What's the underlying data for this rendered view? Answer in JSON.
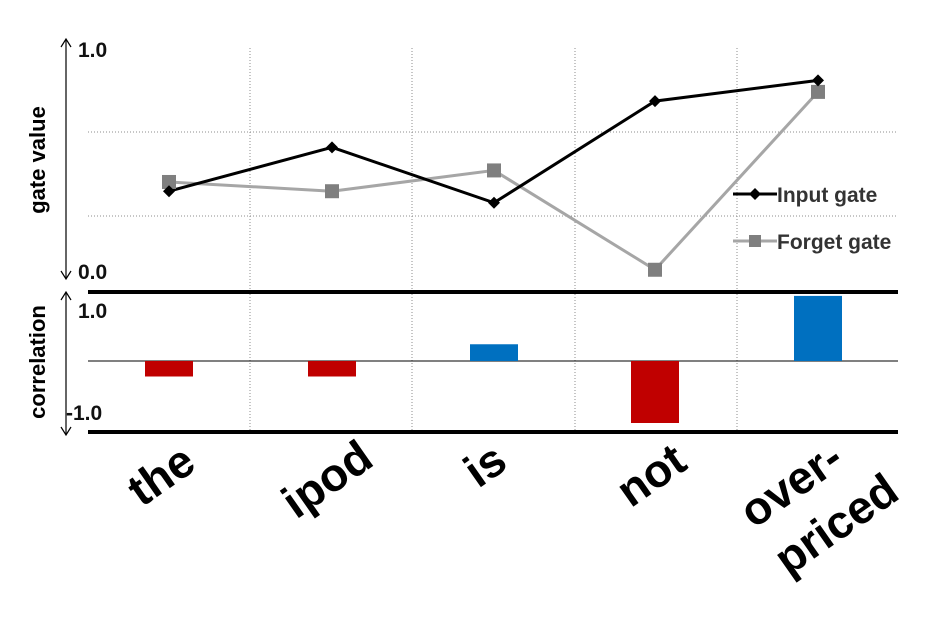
{
  "chart_data": [
    {
      "type": "line",
      "ylabel": "gate value",
      "ylim": [
        0.0,
        1.0
      ],
      "ytick_labels": [
        "1.0",
        "0.0"
      ],
      "categories": [
        "the",
        "ipod",
        "is",
        "not",
        "over-priced"
      ],
      "grid": true,
      "legend_position": "right",
      "series": [
        {
          "name": "Input gate",
          "color": "#000000",
          "marker": "diamond",
          "values": [
            0.38,
            0.57,
            0.33,
            0.77,
            0.86
          ]
        },
        {
          "name": "Forget gate",
          "color": "#a6a6a6",
          "marker": "square",
          "values": [
            0.42,
            0.38,
            0.47,
            0.04,
            0.81
          ]
        }
      ]
    },
    {
      "type": "bar",
      "ylabel": "correlation",
      "ylim": [
        -1.25,
        1.1
      ],
      "ytick_labels": [
        "1.0",
        "-1.0"
      ],
      "categories": [
        "the",
        "ipod",
        "is",
        "not",
        "over-priced"
      ],
      "values": [
        -0.25,
        -0.25,
        0.27,
        -1.0,
        1.05
      ],
      "colors": {
        "positive": "#0070c0",
        "negative": "#c00000"
      }
    }
  ],
  "x_labels": {
    "the": "the",
    "ipod": "ipod",
    "is": "is",
    "not": "not",
    "over_line1": "over-",
    "over_line2": "priced"
  }
}
